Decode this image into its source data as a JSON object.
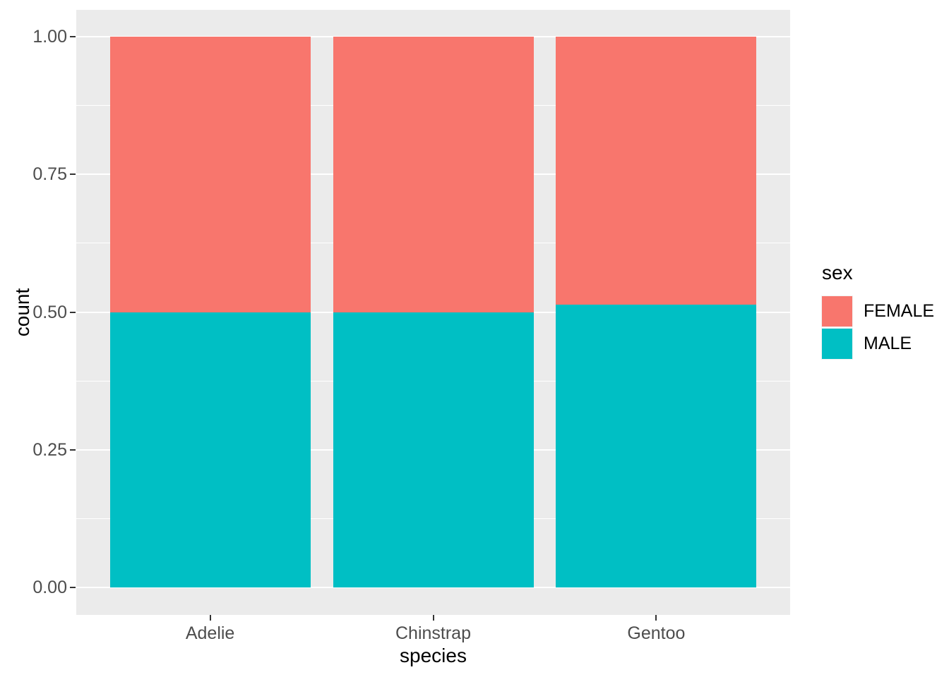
{
  "figure": {
    "x_axis_title": "species",
    "y_axis_title": "count",
    "legend": {
      "title": "sex",
      "items": [
        {
          "label": "FEMALE",
          "color": "#F8766D"
        },
        {
          "label": "MALE",
          "color": "#00BFC4"
        }
      ]
    }
  },
  "chart_data": {
    "type": "bar",
    "subtype": "stacked-proportion-fill",
    "title": "",
    "xlabel": "species",
    "ylabel": "count",
    "categories": [
      "Adelie",
      "Chinstrap",
      "Gentoo"
    ],
    "series": [
      {
        "name": "FEMALE",
        "color": "#F8766D",
        "values": [
          0.5,
          0.5,
          0.487
        ]
      },
      {
        "name": "MALE",
        "color": "#00BFC4",
        "values": [
          0.5,
          0.5,
          0.513
        ]
      }
    ],
    "stack_order_top_to_bottom": [
      "FEMALE",
      "MALE"
    ],
    "y_ticks": [
      {
        "label": "0.00",
        "value": 0.0
      },
      {
        "label": "0.25",
        "value": 0.25
      },
      {
        "label": "0.50",
        "value": 0.5
      },
      {
        "label": "0.75",
        "value": 0.75
      },
      {
        "label": "1.00",
        "value": 1.0
      }
    ],
    "y_minor_ticks": [
      0.125,
      0.375,
      0.625,
      0.875
    ],
    "ylim": [
      0,
      1
    ],
    "legend_position": "right",
    "grid": true,
    "colors": {
      "panel_background": "#EBEBEB",
      "gridline": "#FFFFFF",
      "tick_label": "#4D4D4D",
      "axis_title": "#000000",
      "tick_mark": "#333333"
    }
  }
}
